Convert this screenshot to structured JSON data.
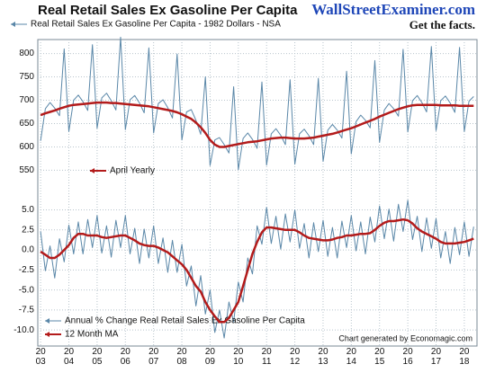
{
  "header": {
    "title": "Real Retail Sales Ex Gasoline Per Capita",
    "brand": "WallStreetExaminer.com",
    "tagline": "Get the facts.",
    "credit": "Chart generated by Economagic.com"
  },
  "chart_data": [
    {
      "type": "line",
      "ylim": [
        520,
        830
      ],
      "yticks": [
        550,
        600,
        650,
        700,
        750,
        800
      ],
      "grid": true,
      "xlim": [
        2002.9,
        2018.45
      ],
      "xticks": [
        {
          "value": 2003,
          "label": "2003"
        },
        {
          "value": 2004,
          "label": "2004"
        },
        {
          "value": 2005,
          "label": "2005"
        },
        {
          "value": 2006,
          "label": "2006"
        },
        {
          "value": 2007,
          "label": "2007"
        },
        {
          "value": 2008,
          "label": "2008"
        },
        {
          "value": 2009,
          "label": "2009"
        },
        {
          "value": 2010,
          "label": "2010"
        },
        {
          "value": 2011,
          "label": "2011"
        },
        {
          "value": 2012,
          "label": "2012"
        },
        {
          "value": 2013,
          "label": "2013"
        },
        {
          "value": 2014,
          "label": "2014"
        },
        {
          "value": 2015,
          "label": "2015"
        },
        {
          "value": 2016,
          "label": "2016"
        },
        {
          "value": 2017,
          "label": "2017"
        },
        {
          "value": 2018,
          "label": "2018"
        }
      ],
      "x": [
        2003,
        2003.167,
        2003.333,
        2003.5,
        2003.667,
        2003.833,
        2004,
        2004.167,
        2004.333,
        2004.5,
        2004.667,
        2004.833,
        2005,
        2005.167,
        2005.333,
        2005.5,
        2005.667,
        2005.833,
        2006,
        2006.167,
        2006.333,
        2006.5,
        2006.667,
        2006.833,
        2007,
        2007.167,
        2007.333,
        2007.5,
        2007.667,
        2007.833,
        2008,
        2008.167,
        2008.333,
        2008.5,
        2008.667,
        2008.833,
        2009,
        2009.167,
        2009.333,
        2009.5,
        2009.667,
        2009.833,
        2010,
        2010.167,
        2010.333,
        2010.5,
        2010.667,
        2010.833,
        2011,
        2011.167,
        2011.333,
        2011.5,
        2011.667,
        2011.833,
        2012,
        2012.167,
        2012.333,
        2012.5,
        2012.667,
        2012.833,
        2013,
        2013.167,
        2013.333,
        2013.5,
        2013.667,
        2013.833,
        2014,
        2014.167,
        2014.333,
        2014.5,
        2014.667,
        2014.833,
        2015,
        2015.167,
        2015.333,
        2015.5,
        2015.667,
        2015.833,
        2016,
        2016.167,
        2016.333,
        2016.5,
        2016.667,
        2016.833,
        2017,
        2017.167,
        2017.333,
        2017.5,
        2017.667,
        2017.833,
        2018,
        2018.167,
        2018.333
      ],
      "series": [
        {
          "name": "Real Retail Sales Ex Gasoline Per Capita - 1982 Dollars - NSA",
          "color": "#5a87a8",
          "width": 1,
          "values": [
            613,
            682,
            695,
            683,
            667,
            810,
            633,
            700,
            711,
            697,
            678,
            819,
            640,
            705,
            715,
            699,
            679,
            835,
            637,
            701,
            710,
            694,
            673,
            812,
            630,
            693,
            701,
            684,
            662,
            799,
            615,
            675,
            680,
            657,
            627,
            750,
            560,
            615,
            620,
            605,
            587,
            729,
            551,
            618,
            630,
            616,
            597,
            739,
            561,
            628,
            639,
            625,
            605,
            744,
            563,
            628,
            638,
            624,
            605,
            747,
            569,
            636,
            648,
            636,
            619,
            762,
            585,
            654,
            668,
            657,
            641,
            785,
            610,
            679,
            693,
            682,
            666,
            809,
            632,
            699,
            710,
            695,
            675,
            815,
            635,
            699,
            709,
            694,
            674,
            813,
            633,
            698,
            708
          ]
        },
        {
          "name": "April Yearly",
          "color": "#b31b1b",
          "width": 2.5,
          "values": [
            668,
            672,
            675,
            678,
            682,
            685,
            688,
            690,
            691,
            692,
            693,
            694,
            695,
            695,
            695,
            694,
            694,
            693,
            692,
            691,
            690,
            689,
            688,
            687,
            685,
            683,
            681,
            679,
            677,
            674,
            670,
            665,
            660,
            652,
            642,
            630,
            615,
            605,
            600,
            600,
            602,
            604,
            606,
            608,
            610,
            611,
            612,
            614,
            616,
            618,
            619,
            620,
            620,
            619,
            618,
            618,
            618,
            619,
            620,
            622,
            624,
            626,
            628,
            631,
            634,
            637,
            640,
            644,
            648,
            652,
            656,
            660,
            665,
            669,
            673,
            677,
            681,
            684,
            687,
            689,
            690,
            690,
            690,
            690,
            690,
            689,
            689,
            689,
            689,
            688,
            688,
            688,
            688
          ]
        }
      ]
    },
    {
      "type": "line",
      "ylim": [
        -12,
        8.2
      ],
      "yticks": [
        {
          "value": 5,
          "label": "5.0"
        },
        2.5,
        {
          "value": 0,
          "label": "0.0"
        },
        -2.5,
        {
          "value": -5,
          "label": "-5.0"
        },
        -7.5,
        {
          "value": -10,
          "label": "-10.0"
        }
      ],
      "grid": true,
      "xlim": [
        2002.9,
        2018.45
      ],
      "x": [
        2003,
        2003.167,
        2003.333,
        2003.5,
        2003.667,
        2003.833,
        2004,
        2004.167,
        2004.333,
        2004.5,
        2004.667,
        2004.833,
        2005,
        2005.167,
        2005.333,
        2005.5,
        2005.667,
        2005.833,
        2006,
        2006.167,
        2006.333,
        2006.5,
        2006.667,
        2006.833,
        2007,
        2007.167,
        2007.333,
        2007.5,
        2007.667,
        2007.833,
        2008,
        2008.167,
        2008.333,
        2008.5,
        2008.667,
        2008.833,
        2009,
        2009.167,
        2009.333,
        2009.5,
        2009.667,
        2009.833,
        2010,
        2010.167,
        2010.333,
        2010.5,
        2010.667,
        2010.833,
        2011,
        2011.167,
        2011.333,
        2011.5,
        2011.667,
        2011.833,
        2012,
        2012.167,
        2012.333,
        2012.5,
        2012.667,
        2012.833,
        2013,
        2013.167,
        2013.333,
        2013.5,
        2013.667,
        2013.833,
        2014,
        2014.167,
        2014.333,
        2014.5,
        2014.667,
        2014.833,
        2015,
        2015.167,
        2015.333,
        2015.5,
        2015.667,
        2015.833,
        2016,
        2016.167,
        2016.333,
        2016.5,
        2016.667,
        2016.833,
        2017,
        2017.167,
        2017.333,
        2017.5,
        2017.667,
        2017.833,
        2018,
        2018.167,
        2018.333
      ],
      "series": [
        {
          "name": "Annual % Change Real Retail Sales Ex Gasoline Per Capita",
          "color": "#5a87a8",
          "width": 1,
          "values": [
            2.3,
            -2.6,
            0.5,
            -3.5,
            1.4,
            -1.5,
            3.1,
            -0.5,
            3.5,
            -0.5,
            3.8,
            0.3,
            4.3,
            -0.4,
            3.0,
            -0.9,
            3.7,
            0.3,
            4.3,
            -0.5,
            2.7,
            -1.7,
            2.6,
            -1.0,
            3.0,
            -1.7,
            1.5,
            -2.8,
            1.2,
            -2.8,
            0.7,
            -4.5,
            -2.0,
            -7.0,
            -3.2,
            -8.0,
            -5.0,
            -10.3,
            -7.5,
            -11.0,
            -6.5,
            -9.0,
            -4.0,
            -6.5,
            -1.0,
            -3.0,
            3.0,
            0.7,
            5.3,
            0.8,
            4.2,
            0.1,
            4.5,
            1.0,
            5.0,
            0.2,
            3.3,
            -1.0,
            3.4,
            -0.2,
            3.7,
            -0.8,
            2.8,
            -1.0,
            3.6,
            0.3,
            4.3,
            -0.1,
            3.5,
            -0.5,
            4.1,
            1.0,
            5.5,
            1.4,
            5.1,
            1.1,
            5.7,
            2.3,
            6.2,
            1.3,
            4.2,
            -0.2,
            4.0,
            0.2,
            3.9,
            -1.0,
            2.3,
            -1.7,
            2.8,
            -0.6,
            3.5,
            -0.8,
            2.9
          ]
        },
        {
          "name": "12 Month MA",
          "color": "#b31b1b",
          "width": 2.5,
          "values": [
            -0.2,
            -0.6,
            -1.0,
            -1.0,
            -0.6,
            0.0,
            0.6,
            1.5,
            2.0,
            2.0,
            1.8,
            1.8,
            1.8,
            1.6,
            1.5,
            1.6,
            1.7,
            1.8,
            1.8,
            1.5,
            1.2,
            0.8,
            0.6,
            0.5,
            0.5,
            0.3,
            0.0,
            -0.3,
            -0.8,
            -1.3,
            -1.8,
            -2.5,
            -3.5,
            -4.5,
            -5.2,
            -6.5,
            -7.5,
            -8.3,
            -9.0,
            -9.0,
            -8.5,
            -7.5,
            -6.5,
            -4.5,
            -2.5,
            -0.5,
            1.0,
            2.2,
            2.8,
            2.8,
            2.7,
            2.6,
            2.5,
            2.5,
            2.5,
            2.2,
            1.8,
            1.5,
            1.4,
            1.3,
            1.2,
            1.2,
            1.3,
            1.5,
            1.6,
            1.8,
            1.8,
            1.9,
            2.0,
            2.0,
            2.1,
            2.5,
            3.0,
            3.4,
            3.6,
            3.6,
            3.7,
            3.8,
            3.7,
            3.3,
            2.7,
            2.3,
            2.0,
            1.7,
            1.4,
            1.0,
            0.8,
            0.8,
            0.8,
            0.9,
            1.0,
            1.2,
            1.4
          ]
        }
      ]
    }
  ]
}
